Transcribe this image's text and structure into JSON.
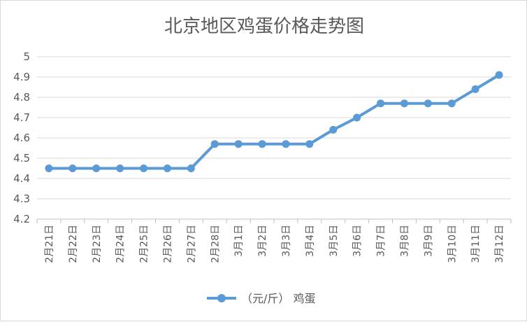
{
  "chart_data": {
    "type": "line",
    "title": "北京地区鸡蛋价格走势图",
    "categories": [
      "2月21日",
      "2月22日",
      "2月23日",
      "2月24日",
      "2月25日",
      "2月26日",
      "2月27日",
      "2月28日",
      "3月1日",
      "3月2日",
      "3月3日",
      "3月4日",
      "3月5日",
      "3月6日",
      "3月7日",
      "3月8日",
      "3月9日",
      "3月10日",
      "3月11日",
      "3月12日"
    ],
    "series": [
      {
        "name": "（元/斤） 鸡蛋",
        "color": "#5b9bd5",
        "values": [
          4.45,
          4.45,
          4.45,
          4.45,
          4.45,
          4.45,
          4.45,
          4.57,
          4.57,
          4.57,
          4.57,
          4.57,
          4.64,
          4.7,
          4.77,
          4.77,
          4.77,
          4.77,
          4.84,
          4.91
        ]
      }
    ],
    "ylim": [
      4.2,
      5.0
    ],
    "yticks": [
      "4.2",
      "4.3",
      "4.4",
      "4.5",
      "4.6",
      "4.7",
      "4.8",
      "4.9",
      "5"
    ],
    "grid": true,
    "legend": "bottom"
  }
}
